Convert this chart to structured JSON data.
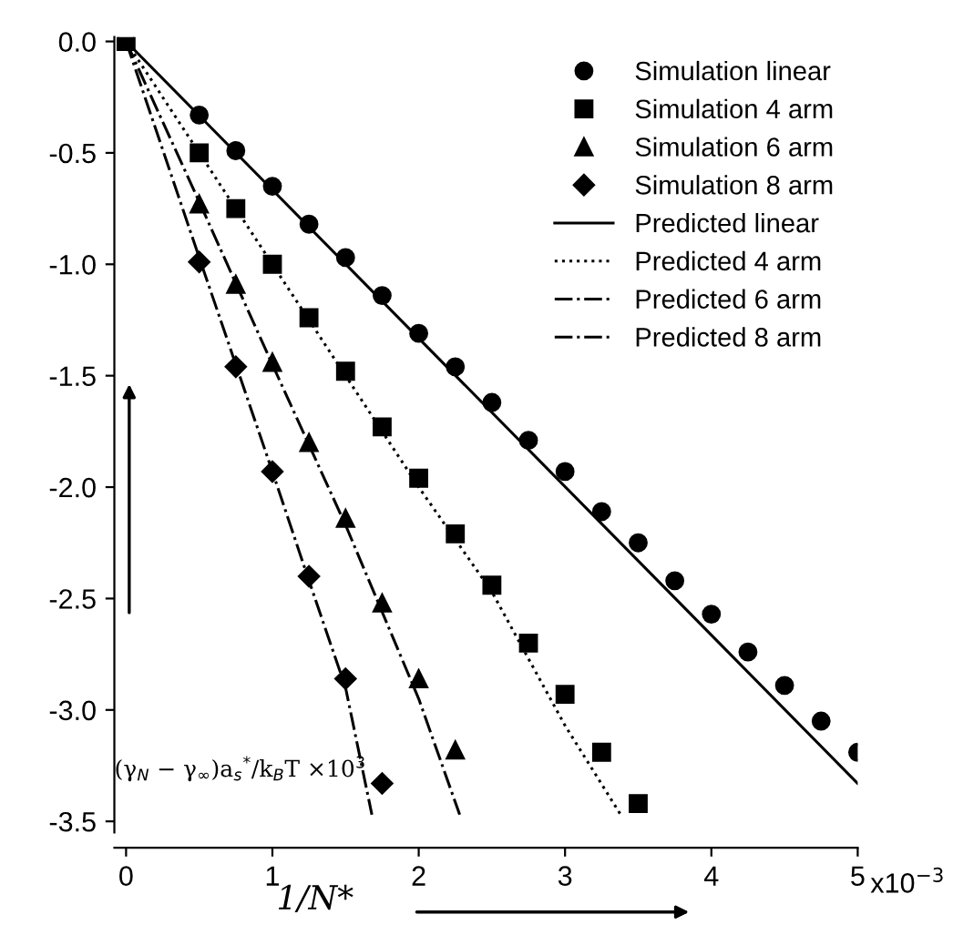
{
  "chart_data": {
    "type": "scatter",
    "xlabel": "1/N*",
    "ylabel": "(γ$_{N}$ − γ$_{∞}$)a$_{s}$$^{*}$/k$_{B}$T ×10$^{3}$",
    "annotations": [
      "x10$^{−3}$"
    ],
    "xlim": [
      -0.08,
      5.0
    ],
    "ylim": [
      -3.55,
      0.02
    ],
    "xticks": [
      0,
      1,
      2,
      3,
      4,
      5
    ],
    "yticks": [
      {
        "value": 0,
        "label": "0.0"
      },
      {
        "value": -0.5,
        "label": "-0.5"
      },
      {
        "value": -1,
        "label": "-1.0"
      },
      {
        "value": -1.5,
        "label": "-1.5"
      },
      {
        "value": -2,
        "label": "-2.0"
      },
      {
        "value": -2.5,
        "label": "-2.5"
      },
      {
        "value": -3,
        "label": "-3.0"
      },
      {
        "value": -3.5,
        "label": "-3.5"
      }
    ],
    "grid": false,
    "legend": "top right",
    "series": [
      {
        "name": "Simulation linear",
        "marker": "circle",
        "color": "#000000",
        "x": [
          0.5,
          0.75,
          1,
          1.25,
          1.5,
          1.75,
          2,
          2.25,
          2.5,
          2.75,
          3,
          3.25,
          3.5,
          3.75,
          4,
          4.25,
          4.5,
          4.75,
          5
        ],
        "values": [
          -0.33,
          -0.49,
          -0.65,
          -0.82,
          -0.97,
          -1.14,
          -1.31,
          -1.46,
          -1.62,
          -1.79,
          -1.93,
          -2.11,
          -2.25,
          -2.42,
          -2.57,
          -2.74,
          -2.89,
          -3.05,
          -3.19
        ]
      },
      {
        "name": "Simulation 4 arm",
        "marker": "square",
        "color": "#000000",
        "x": [
          0,
          0.5,
          0.75,
          1,
          1.25,
          1.5,
          1.75,
          2,
          2.25,
          2.5,
          2.75,
          3,
          3.25,
          3.5
        ],
        "values": [
          0,
          -0.5,
          -0.75,
          -1.0,
          -1.24,
          -1.48,
          -1.73,
          -1.96,
          -2.21,
          -2.44,
          -2.7,
          -2.93,
          -3.19,
          -3.42
        ]
      },
      {
        "name": "Simulation 6 arm",
        "marker": "triangle",
        "color": "#000000",
        "x": [
          0.5,
          0.75,
          1,
          1.25,
          1.5,
          1.75,
          2,
          2.25
        ],
        "values": [
          -0.73,
          -1.09,
          -1.44,
          -1.8,
          -2.14,
          -2.52,
          -2.86,
          -3.18
        ]
      },
      {
        "name": "Simulation 8 arm",
        "marker": "diamond",
        "color": "#000000",
        "x": [
          0.5,
          0.75,
          1,
          1.25,
          1.5,
          1.75
        ],
        "values": [
          -0.99,
          -1.46,
          -1.93,
          -2.4,
          -2.86,
          -3.33
        ]
      },
      {
        "name": "Predicted linear",
        "type": "line",
        "line_style": "solid",
        "color": "#000000",
        "x": [
          0,
          5
        ],
        "values": [
          0,
          -3.33
        ]
      },
      {
        "name": "Predicted 4 arm",
        "type": "line",
        "line_style": "dotted",
        "color": "#000000",
        "x": [
          0,
          0.5,
          1,
          1.5,
          2,
          2.5,
          3,
          3.38
        ],
        "values": [
          0,
          -0.5,
          -1.0,
          -1.5,
          -2.0,
          -2.47,
          -3.07,
          -3.47
        ]
      },
      {
        "name": "Predicted 6 arm",
        "type": "line",
        "line_style": "dashdot",
        "color": "#000000",
        "x": [
          0,
          0.5,
          1,
          1.5,
          2,
          2.28
        ],
        "values": [
          0,
          -0.72,
          -1.45,
          -2.17,
          -2.95,
          -3.47
        ]
      },
      {
        "name": "Predicted 8 arm",
        "type": "line",
        "line_style": "dashdot",
        "color": "#000000",
        "x": [
          0,
          0.5,
          1,
          1.25,
          1.5,
          1.68
        ],
        "values": [
          0,
          -0.97,
          -1.93,
          -2.42,
          -2.9,
          -3.47
        ]
      }
    ]
  }
}
